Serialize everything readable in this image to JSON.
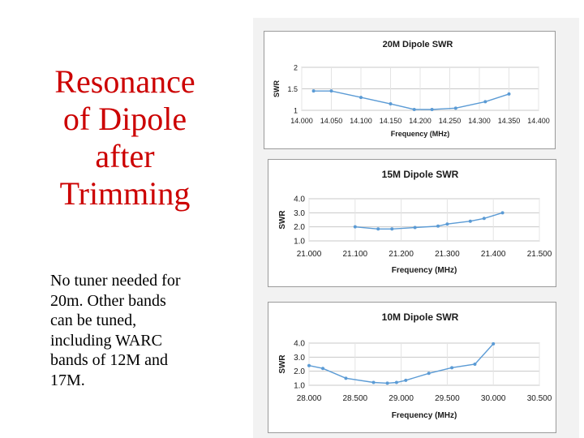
{
  "slide": {
    "title_lines": [
      "Resonance",
      "of Dipole",
      "after",
      "Trimming"
    ],
    "body_lines": [
      "No tuner needed for",
      "20m.  Other bands",
      "can be tuned,",
      "including WARC",
      "bands of 12M and",
      "17M."
    ]
  },
  "colors": {
    "title": "#cc0000",
    "series": "#5b9bd5",
    "grid": "#c8c8c8",
    "plot_bg": "#ffffff"
  },
  "chart_data": [
    {
      "type": "line",
      "title": "20M Dipole SWR",
      "xlabel": "Frequency (MHz)",
      "ylabel": "SWR",
      "xlim": [
        14.0,
        14.4
      ],
      "ylim": [
        1,
        2
      ],
      "xticks": [
        "14.000",
        "14.050",
        "14.100",
        "14.150",
        "14.200",
        "14.250",
        "14.300",
        "14.350",
        "14.400"
      ],
      "yticks": [
        "1",
        "1.5",
        "2"
      ],
      "grid": true,
      "x": [
        14.02,
        14.05,
        14.1,
        14.15,
        14.19,
        14.22,
        14.26,
        14.31,
        14.35
      ],
      "values": [
        1.45,
        1.45,
        1.3,
        1.15,
        1.02,
        1.02,
        1.05,
        1.2,
        1.38
      ]
    },
    {
      "type": "line",
      "title": "15M Dipole SWR",
      "xlabel": "Frequency (MHz)",
      "ylabel": "SWR",
      "xlim": [
        21.0,
        21.5
      ],
      "ylim": [
        1,
        4
      ],
      "xticks": [
        "21.000",
        "21.100",
        "21.200",
        "21.300",
        "21.400",
        "21.500"
      ],
      "yticks": [
        "1.0",
        "2.0",
        "3.0",
        "4.0"
      ],
      "grid": true,
      "x": [
        21.1,
        21.15,
        21.18,
        21.23,
        21.28,
        21.3,
        21.35,
        21.38,
        21.42
      ],
      "values": [
        2.0,
        1.85,
        1.85,
        1.95,
        2.05,
        2.2,
        2.4,
        2.6,
        3.0
      ]
    },
    {
      "type": "line",
      "title": "10M Dipole SWR",
      "xlabel": "Frequency (MHz)",
      "ylabel": "SWR",
      "xlim": [
        28.0,
        30.5
      ],
      "ylim": [
        1,
        4
      ],
      "xticks": [
        "28.000",
        "28.500",
        "29.000",
        "29.500",
        "30.000",
        "30.500"
      ],
      "yticks": [
        "1.0",
        "2.0",
        "3.0",
        "4.0"
      ],
      "grid": true,
      "x": [
        28.0,
        28.15,
        28.4,
        28.7,
        28.85,
        28.95,
        29.05,
        29.3,
        29.55,
        29.8,
        30.0
      ],
      "values": [
        2.4,
        2.2,
        1.5,
        1.2,
        1.15,
        1.2,
        1.35,
        1.85,
        2.25,
        2.5,
        3.95
      ]
    }
  ]
}
